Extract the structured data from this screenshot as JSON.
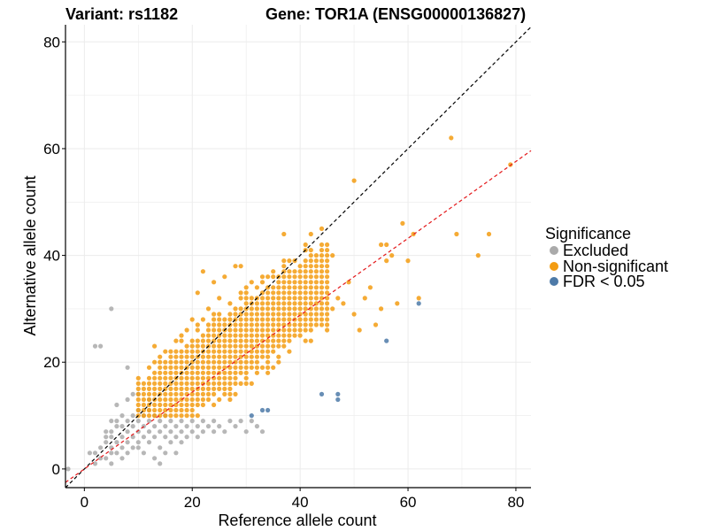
{
  "chart_data": {
    "type": "scatter",
    "title_left": "Variant: rs1182",
    "title_right": "Gene: TOR1A (ENSG00000136827)",
    "xlabel": "Reference allele count",
    "ylabel": "Alternative allele count",
    "xlim": [
      -3.5,
      82.8
    ],
    "ylim": [
      -3.5,
      83.2
    ],
    "xticks": [
      0,
      20,
      40,
      60,
      80
    ],
    "yticks": [
      0,
      20,
      40,
      60,
      80
    ],
    "grid": true,
    "legend_title": "Significance",
    "legend_position": "right",
    "reference_lines": [
      {
        "name": "identity",
        "slope": 1,
        "intercept": 0,
        "style": "dashed",
        "color": "#000000"
      },
      {
        "name": "fit",
        "slope": 0.72,
        "intercept": 0,
        "style": "dashed",
        "color": "#e41a1c"
      }
    ],
    "series": [
      {
        "name": "Excluded",
        "color": "#aaaaaa",
        "points": [
          [
            -3,
            0
          ],
          [
            1,
            3
          ],
          [
            2,
            1
          ],
          [
            2,
            3
          ],
          [
            2,
            23
          ],
          [
            3,
            23
          ],
          [
            3,
            2
          ],
          [
            3,
            4
          ],
          [
            4,
            7
          ],
          [
            4,
            2
          ],
          [
            4,
            5
          ],
          [
            4,
            6
          ],
          [
            5,
            30
          ],
          [
            5,
            3
          ],
          [
            5,
            4
          ],
          [
            5,
            6
          ],
          [
            5,
            7
          ],
          [
            5,
            9
          ],
          [
            5,
            1
          ],
          [
            6,
            5
          ],
          [
            6,
            8
          ],
          [
            6,
            3
          ],
          [
            6,
            9
          ],
          [
            6,
            12
          ],
          [
            7,
            6
          ],
          [
            7,
            4
          ],
          [
            7,
            2
          ],
          [
            7,
            8
          ],
          [
            7,
            10
          ],
          [
            8,
            19
          ],
          [
            8,
            9
          ],
          [
            8,
            3
          ],
          [
            8,
            5
          ],
          [
            8,
            7
          ],
          [
            8,
            13
          ],
          [
            9,
            10
          ],
          [
            9,
            6
          ],
          [
            9,
            4
          ],
          [
            9,
            8
          ],
          [
            9,
            14
          ],
          [
            10,
            5
          ],
          [
            10,
            7
          ],
          [
            10,
            9
          ],
          [
            10,
            11
          ],
          [
            10,
            14
          ],
          [
            10,
            4
          ],
          [
            11,
            8
          ],
          [
            11,
            10
          ],
          [
            11,
            3
          ],
          [
            11,
            6
          ],
          [
            12,
            9
          ],
          [
            12,
            5
          ],
          [
            12,
            7
          ],
          [
            12,
            11
          ],
          [
            12,
            13
          ],
          [
            13,
            2
          ],
          [
            13,
            6
          ],
          [
            13,
            8
          ],
          [
            13,
            10
          ],
          [
            14,
            1
          ],
          [
            14,
            4
          ],
          [
            14,
            7
          ],
          [
            14,
            9
          ],
          [
            15,
            3
          ],
          [
            15,
            6
          ],
          [
            15,
            8
          ],
          [
            15,
            10
          ],
          [
            16,
            5
          ],
          [
            16,
            7
          ],
          [
            16,
            9
          ],
          [
            17,
            3
          ],
          [
            17,
            6
          ],
          [
            17,
            8
          ],
          [
            18,
            7
          ],
          [
            18,
            9
          ],
          [
            18,
            5
          ],
          [
            19,
            8
          ],
          [
            19,
            6
          ],
          [
            20,
            7
          ],
          [
            20,
            9
          ],
          [
            21,
            8
          ],
          [
            21,
            6
          ],
          [
            22,
            7
          ],
          [
            22,
            9
          ],
          [
            23,
            8
          ],
          [
            24,
            7
          ],
          [
            24,
            9
          ],
          [
            25,
            8
          ],
          [
            26,
            7
          ],
          [
            27,
            9
          ],
          [
            28,
            8
          ],
          [
            29,
            9
          ],
          [
            30,
            7
          ],
          [
            31,
            9
          ],
          [
            32,
            8
          ],
          [
            33,
            7
          ]
        ]
      },
      {
        "name": "Non-significant",
        "color": "#f39c12",
        "points": [
          [
            13,
            23
          ],
          [
            14,
            21
          ],
          [
            15,
            22
          ],
          [
            16,
            17
          ],
          [
            17,
            19
          ],
          [
            18,
            20
          ],
          [
            19,
            22
          ],
          [
            20,
            28
          ],
          [
            21,
            33
          ],
          [
            22,
            37
          ],
          [
            23,
            30
          ],
          [
            24,
            35
          ],
          [
            25,
            32
          ],
          [
            26,
            36
          ],
          [
            27,
            31
          ],
          [
            28,
            38
          ],
          [
            29,
            38
          ],
          [
            30,
            33
          ],
          [
            31,
            35
          ],
          [
            32,
            30
          ],
          [
            33,
            32
          ],
          [
            34,
            29
          ],
          [
            35,
            31
          ],
          [
            36,
            28
          ],
          [
            37,
            30
          ],
          [
            38,
            34
          ],
          [
            39,
            33
          ],
          [
            40,
            35
          ],
          [
            41,
            28
          ],
          [
            42,
            29
          ],
          [
            43,
            30
          ],
          [
            44,
            27
          ],
          [
            45,
            26
          ],
          [
            46,
            30
          ],
          [
            47,
            32
          ],
          [
            48,
            31
          ],
          [
            49,
            35
          ],
          [
            50,
            29
          ],
          [
            51,
            26
          ],
          [
            52,
            32
          ],
          [
            53,
            34
          ],
          [
            54,
            27
          ],
          [
            55,
            30
          ],
          [
            56,
            42
          ],
          [
            57,
            40
          ],
          [
            58,
            31
          ],
          [
            59,
            46
          ],
          [
            60,
            39
          ],
          [
            37,
            44
          ],
          [
            42,
            44
          ],
          [
            44,
            45
          ],
          [
            46,
            40
          ],
          [
            50,
            54
          ],
          [
            55,
            42
          ],
          [
            56,
            39
          ],
          [
            61,
            44
          ],
          [
            62,
            32
          ],
          [
            68,
            62
          ],
          [
            69,
            44
          ],
          [
            73,
            40
          ],
          [
            75,
            44
          ],
          [
            79,
            57
          ]
        ],
        "fill_region": {
          "x_min": 10,
          "x_max": 45,
          "center_slope": 0.72,
          "spread": 9
        }
      },
      {
        "name": "FDR < 0.05",
        "color": "#4d7aa8",
        "points": [
          [
            31,
            10
          ],
          [
            33,
            11
          ],
          [
            34,
            11
          ],
          [
            44,
            14
          ],
          [
            47,
            14
          ],
          [
            47,
            13
          ],
          [
            56,
            24
          ],
          [
            62,
            31
          ]
        ]
      }
    ]
  },
  "legend": {
    "title": "Significance",
    "items": [
      {
        "label": "Excluded",
        "color": "#aaaaaa"
      },
      {
        "label": "Non-significant",
        "color": "#f39c12"
      },
      {
        "label": "FDR < 0.05",
        "color": "#4d7aa8"
      }
    ]
  }
}
